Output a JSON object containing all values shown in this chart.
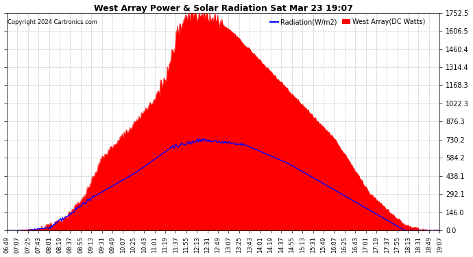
{
  "title": "West Array Power & Solar Radiation Sat Mar 23 19:07",
  "copyright": "Copyright 2024 Cartronics.com",
  "legend_radiation": "Radiation(W/m2)",
  "legend_west_array": "West Array(DC Watts)",
  "radiation_color": "blue",
  "west_array_color": "red",
  "background_color": "#ffffff",
  "grid_color": "#aaaaaa",
  "yticks": [
    0.0,
    146.0,
    292.1,
    438.1,
    584.2,
    730.2,
    876.3,
    1022.3,
    1168.3,
    1314.4,
    1460.4,
    1606.5,
    1752.5
  ],
  "ymax": 1752.5,
  "xtick_labels": [
    "06:49",
    "07:07",
    "07:25",
    "07:43",
    "08:01",
    "08:19",
    "08:37",
    "08:55",
    "09:13",
    "09:31",
    "09:49",
    "10:07",
    "10:25",
    "10:43",
    "11:01",
    "11:19",
    "11:37",
    "11:55",
    "12:13",
    "12:31",
    "12:49",
    "13:07",
    "13:25",
    "13:43",
    "14:01",
    "14:19",
    "14:37",
    "14:55",
    "15:13",
    "15:31",
    "15:49",
    "16:07",
    "16:25",
    "16:43",
    "17:01",
    "17:19",
    "17:37",
    "17:55",
    "18:13",
    "18:31",
    "18:49",
    "19:07"
  ],
  "title_fontsize": 9,
  "copyright_fontsize": 6,
  "legend_fontsize": 7,
  "tick_fontsize": 6,
  "ytick_fontsize": 7
}
